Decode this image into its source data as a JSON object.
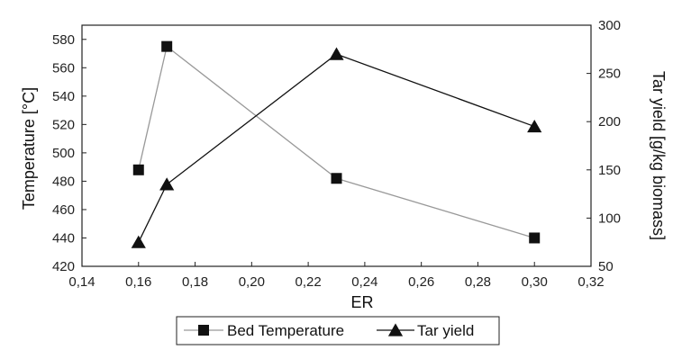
{
  "chart_data": {
    "type": "line",
    "xlabel": "ER",
    "ylabel_left": "Temperature [°C]",
    "ylabel_right": "Tar yield [g/kg biomass]",
    "xlim": [
      0.14,
      0.32
    ],
    "ylim_left": [
      420,
      590
    ],
    "ylim_right": [
      50,
      300
    ],
    "x_ticks": [
      "0,14",
      "0,16",
      "0,18",
      "0,20",
      "0,22",
      "0,24",
      "0,26",
      "0,28",
      "0,30",
      "0,32"
    ],
    "y_left_ticks": [
      "420",
      "440",
      "460",
      "480",
      "500",
      "520",
      "540",
      "560",
      "580"
    ],
    "y_right_ticks": [
      "50",
      "100",
      "150",
      "200",
      "250",
      "300"
    ],
    "grid": false,
    "legend_position": "bottom",
    "series": [
      {
        "name": "Bed Temperature",
        "axis": "left",
        "marker": "square",
        "color": "#999999",
        "x": [
          0.16,
          0.17,
          0.23,
          0.3
        ],
        "y": [
          488,
          575,
          482,
          440
        ]
      },
      {
        "name": "Tar yield",
        "axis": "right",
        "marker": "triangle",
        "color": "#111111",
        "x": [
          0.16,
          0.17,
          0.23,
          0.3
        ],
        "y": [
          75,
          135,
          270,
          195
        ]
      }
    ]
  }
}
